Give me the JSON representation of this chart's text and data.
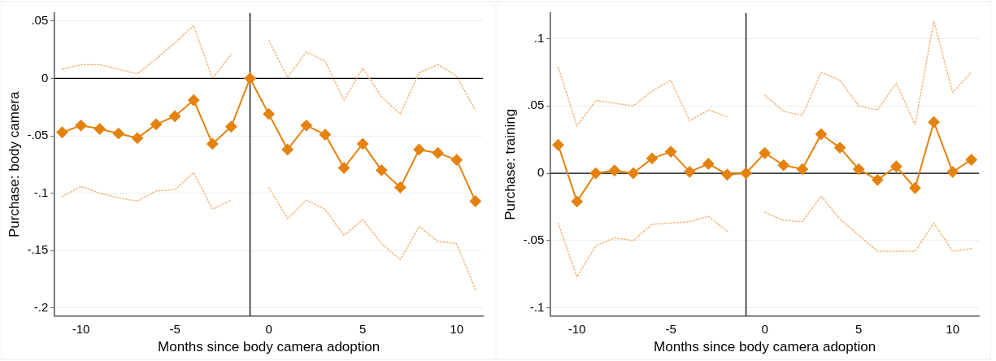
{
  "chart_data": [
    {
      "type": "line",
      "xlabel": "Months since body camera adoption",
      "ylabel": "Purchase: body camera",
      "x": [
        -11,
        -10,
        -9,
        -8,
        -7,
        -6,
        -5,
        -4,
        -3,
        -2,
        -1,
        0,
        1,
        2,
        3,
        4,
        5,
        6,
        7,
        8,
        9,
        10,
        11
      ],
      "series": [
        {
          "color": "#e5820f",
          "marker": "diamond",
          "line_style": "solid",
          "values": [
            -0.047,
            -0.041,
            -0.044,
            -0.048,
            -0.052,
            -0.04,
            -0.033,
            -0.019,
            -0.057,
            -0.042,
            0,
            -0.031,
            -0.062,
            -0.041,
            -0.049,
            -0.078,
            -0.057,
            -0.08,
            -0.095,
            -0.062,
            -0.065,
            -0.071,
            -0.107
          ]
        },
        {
          "color": "#f5b67a",
          "marker": "none",
          "line_style": "dotted",
          "values": [
            0.008,
            0.012,
            0.012,
            0.008,
            0.004,
            0.017,
            0.031,
            0.046,
            0.0,
            0.021,
            null,
            0.033,
            0.001,
            0.023,
            0.015,
            -0.019,
            0.009,
            -0.016,
            -0.031,
            0.005,
            0.012,
            0.002,
            -0.028
          ]
        },
        {
          "color": "#f5b67a",
          "marker": "none",
          "line_style": "dotted",
          "values": [
            -0.103,
            -0.094,
            -0.1,
            -0.104,
            -0.107,
            -0.098,
            -0.097,
            -0.082,
            -0.114,
            -0.106,
            null,
            -0.095,
            -0.122,
            -0.106,
            -0.114,
            -0.137,
            -0.123,
            -0.144,
            -0.158,
            -0.129,
            -0.142,
            -0.144,
            -0.184
          ]
        }
      ],
      "xlim": [
        -11.4,
        11.4
      ],
      "xticks": [
        -10,
        -5,
        0,
        5,
        10
      ],
      "ylim": [
        -0.207,
        0.057
      ],
      "yticks": [
        {
          "value": -0.2,
          "label": "-.2"
        },
        {
          "value": -0.15,
          "label": "-.15"
        },
        {
          "value": -0.1,
          "label": "-.1"
        },
        {
          "value": -0.05,
          "label": "-.05"
        },
        0,
        {
          "value": 0.05,
          "label": ".05"
        }
      ],
      "ref_lines": [
        {
          "axis": "x",
          "value": -1,
          "color": "#000000"
        },
        {
          "axis": "y",
          "value": 0,
          "color": "#000000"
        }
      ],
      "grid": "y",
      "legend": false
    },
    {
      "type": "line",
      "xlabel": "Months since body camera adoption",
      "ylabel": "Purchase: training",
      "x": [
        -11,
        -10,
        -9,
        -8,
        -7,
        -6,
        -5,
        -4,
        -3,
        -2,
        -1,
        0,
        1,
        2,
        3,
        4,
        5,
        6,
        7,
        8,
        9,
        10,
        11
      ],
      "series": [
        {
          "color": "#e5820f",
          "marker": "diamond",
          "line_style": "solid",
          "values": [
            0.021,
            -0.021,
            0.0,
            0.002,
            0.0,
            0.011,
            0.016,
            0.001,
            0.007,
            -0.001,
            0,
            0.015,
            0.006,
            0.003,
            0.029,
            0.019,
            0.003,
            -0.005,
            0.005,
            -0.011,
            0.038,
            0.001,
            0.01
          ]
        },
        {
          "color": "#f5b67a",
          "marker": "none",
          "line_style": "dotted",
          "values": [
            0.079,
            0.035,
            0.054,
            0.052,
            0.05,
            0.061,
            0.069,
            0.039,
            0.047,
            0.042,
            null,
            0.058,
            0.046,
            0.043,
            0.075,
            0.069,
            0.05,
            0.047,
            0.067,
            0.036,
            0.113,
            0.06,
            0.075
          ]
        },
        {
          "color": "#f5b67a",
          "marker": "none",
          "line_style": "dotted",
          "values": [
            -0.037,
            -0.077,
            -0.054,
            -0.048,
            -0.05,
            -0.038,
            -0.037,
            -0.036,
            -0.032,
            -0.043,
            null,
            -0.029,
            -0.035,
            -0.036,
            -0.017,
            -0.034,
            -0.046,
            -0.058,
            -0.058,
            -0.058,
            -0.037,
            -0.058,
            -0.056
          ]
        }
      ],
      "xlim": [
        -11.4,
        11.4
      ],
      "xticks": [
        -10,
        -5,
        0,
        5,
        10
      ],
      "ylim": [
        -0.106,
        0.119
      ],
      "yticks": [
        {
          "value": -0.1,
          "label": "-.1"
        },
        {
          "value": -0.05,
          "label": "-.05"
        },
        0,
        {
          "value": 0.05,
          "label": ".05"
        },
        {
          "value": 0.1,
          "label": ".1"
        }
      ],
      "ref_lines": [
        {
          "axis": "x",
          "value": -1,
          "color": "#000000"
        },
        {
          "axis": "y",
          "value": 0,
          "color": "#000000"
        }
      ],
      "grid": "y",
      "legend": false
    }
  ]
}
